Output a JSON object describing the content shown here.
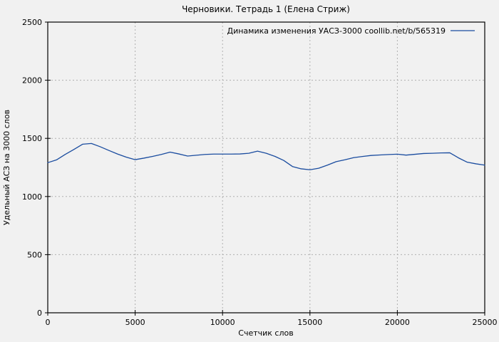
{
  "colors": {
    "background": "#f1f1f1",
    "axis": "#000000",
    "grid": "#b0b0b0",
    "line": "#1a4c9f"
  },
  "chart_data": {
    "type": "line",
    "title": "Черновики. Тетрадь 1 (Елена Стриж)",
    "xlabel": "Счетчик слов",
    "ylabel": "Удельный АСЗ на 3000 слов",
    "xlim": [
      0,
      25000
    ],
    "ylim": [
      0,
      2500
    ],
    "x_ticks": [
      0,
      5000,
      10000,
      15000,
      20000,
      25000
    ],
    "y_ticks": [
      0,
      500,
      1000,
      1500,
      2000,
      2500
    ],
    "grid": true,
    "legend_position": "top-right-inside",
    "legend": [
      {
        "label": "Динамика изменения УАСЗ-3000 coollib.net/b/565319",
        "color": "#1a4c9f"
      }
    ],
    "series": [
      {
        "name": "Динамика изменения УАСЗ-3000 coollib.net/b/565319",
        "color": "#1a4c9f",
        "x": [
          0,
          500,
          1000,
          1500,
          2000,
          2500,
          3000,
          3500,
          4000,
          4500,
          5000,
          5500,
          6000,
          6500,
          7000,
          7500,
          8000,
          8500,
          9000,
          9500,
          10000,
          10500,
          11000,
          11500,
          12000,
          12500,
          13000,
          13500,
          14000,
          14500,
          15000,
          15500,
          16000,
          16500,
          17000,
          17500,
          18000,
          18500,
          19000,
          19500,
          20000,
          20500,
          21000,
          21500,
          22000,
          22500,
          23000,
          23500,
          24000,
          24500,
          25000
        ],
        "values": [
          1291,
          1315,
          1362,
          1405,
          1450,
          1456,
          1428,
          1396,
          1365,
          1338,
          1317,
          1330,
          1345,
          1362,
          1382,
          1366,
          1348,
          1355,
          1362,
          1365,
          1365,
          1365,
          1366,
          1372,
          1390,
          1372,
          1345,
          1310,
          1258,
          1238,
          1230,
          1243,
          1270,
          1300,
          1316,
          1334,
          1344,
          1353,
          1357,
          1361,
          1364,
          1356,
          1363,
          1370,
          1372,
          1375,
          1376,
          1332,
          1295,
          1281,
          1270
        ]
      }
    ]
  }
}
